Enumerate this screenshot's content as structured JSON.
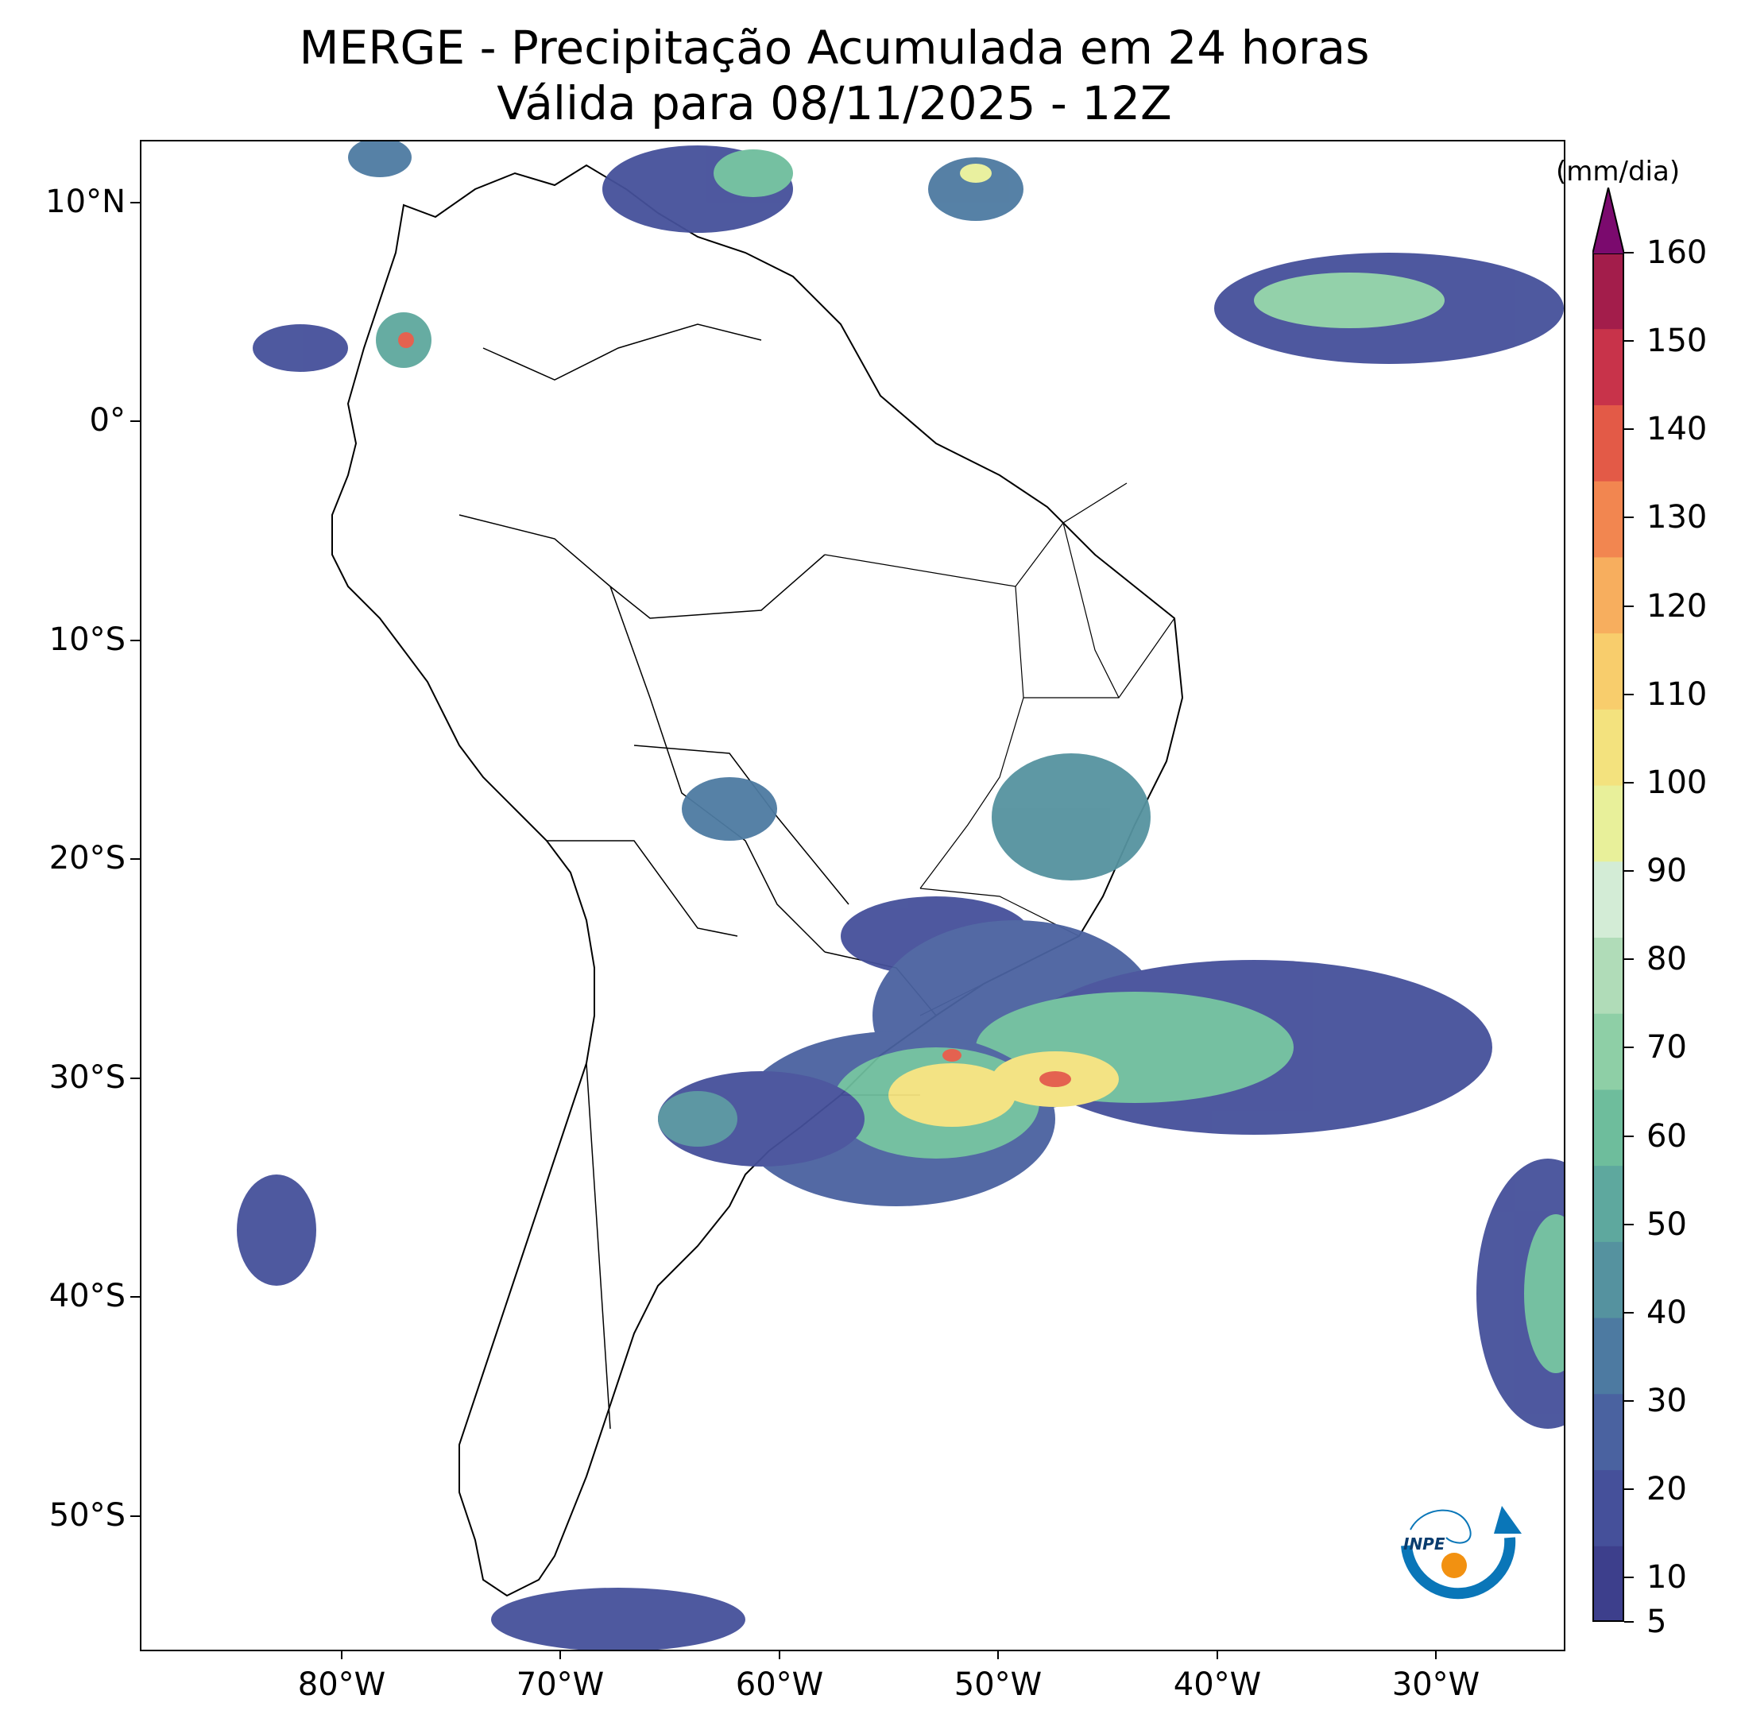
{
  "title": {
    "line1": "MERGE - Precipitação Acumulada em 24 horas",
    "line2": "Válida para 08/11/2025 - 12Z"
  },
  "map": {
    "lon_range": [
      -90,
      -25
    ],
    "lat_range": [
      -56,
      13
    ],
    "lat_ticks": [
      "10°N",
      "0°",
      "10°S",
      "20°S",
      "30°S",
      "40°S",
      "50°S"
    ],
    "lon_ticks": [
      "80°W",
      "70°W",
      "60°W",
      "50°W",
      "40°W",
      "30°W"
    ]
  },
  "colorbar": {
    "units": "(mm/dia)",
    "labels": [
      "5",
      "10",
      "20",
      "30",
      "40",
      "50",
      "60",
      "70",
      "80",
      "90",
      "100",
      "110",
      "120",
      "130",
      "140",
      "150",
      "160"
    ],
    "colors": [
      "#3d3f8c",
      "#45509a",
      "#4a62a0",
      "#4d7aa1",
      "#55929f",
      "#5ea89e",
      "#6ebd9c",
      "#8ecfa6",
      "#b0dcb8",
      "#d3ecd6",
      "#e8f09a",
      "#f3e27e",
      "#f8cd6c",
      "#f7ae5e",
      "#f28650",
      "#e35a47",
      "#c8334a",
      "#a31d4b"
    ],
    "extend_color": "#7b0a6e"
  },
  "logo": {
    "text": "INPE"
  }
}
